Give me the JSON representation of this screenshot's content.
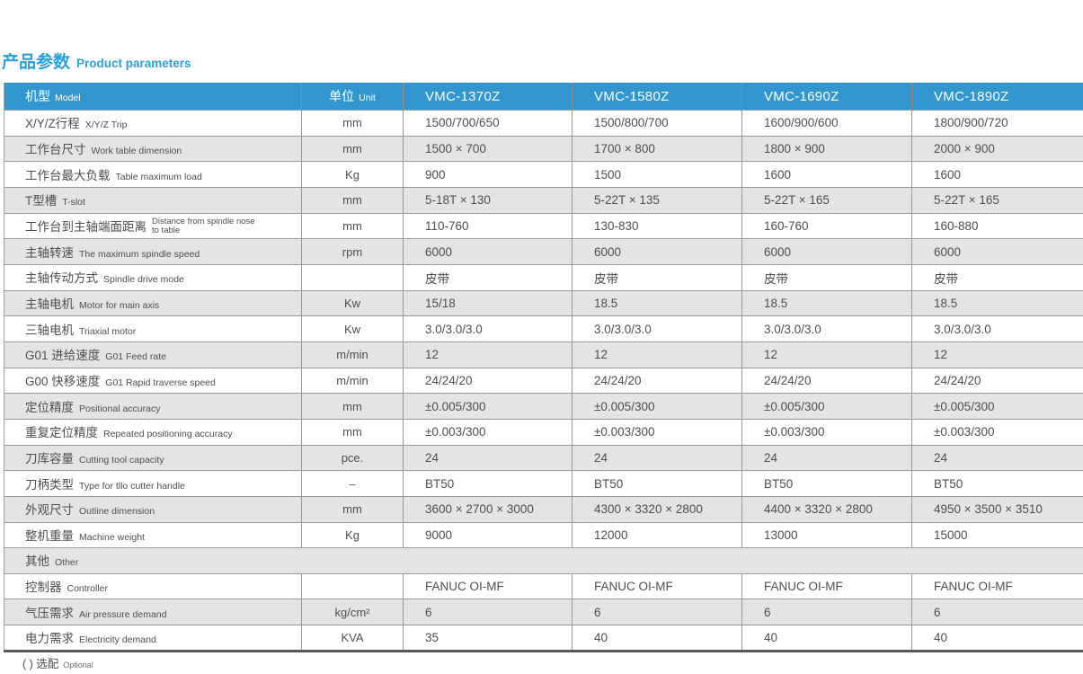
{
  "page": {
    "title_zh": "产品参数",
    "title_en": "Product parameters",
    "footnote_zh": "( ) 选配",
    "footnote_en": "Optional"
  },
  "colors": {
    "accent_blue": "#3297ce",
    "title_blue": "#2ba0db",
    "alt_row_gray": "#e3e4e6",
    "text_gray": "#4d4e50",
    "grid_gray": "#98999b"
  },
  "table": {
    "header": {
      "param_zh": "机型",
      "param_en": "Model",
      "unit_zh": "单位",
      "unit_en": "Unit",
      "models": [
        "VMC-1370Z",
        "VMC-1580Z",
        "VMC-1690Z",
        "VMC-1890Z"
      ]
    },
    "rows": [
      {
        "zh": "X/Y/Z行程",
        "en": "X/Y/Z Trip",
        "unit": "mm",
        "values": [
          "1500/700/650",
          "1500/800/700",
          "1600/900/600",
          "1800/900/720"
        ]
      },
      {
        "zh": "工作台尺寸",
        "en": "Work table dimension",
        "unit": "mm",
        "values": [
          "1500 × 700",
          "1700 × 800",
          "1800 × 900",
          "2000 × 900"
        ]
      },
      {
        "zh": "工作台最大负载",
        "en": "Table maximum load",
        "unit": "Kg",
        "values": [
          "900",
          "1500",
          "1600",
          "1600"
        ]
      },
      {
        "zh": "T型槽",
        "en": "T-slot",
        "unit": "mm",
        "values": [
          "5-18T × 130",
          "5-22T × 135",
          "5-22T × 165",
          "5-22T × 165"
        ]
      },
      {
        "zh": "工作台到主轴端面距离",
        "en": "Distance from spindle nose to table",
        "en_twoline": true,
        "unit": "mm",
        "values": [
          "110-760",
          "130-830",
          "160-760",
          "160-880"
        ]
      },
      {
        "zh": "主轴转速",
        "en": "The maximum spindle speed",
        "unit": "rpm",
        "values": [
          "6000",
          "6000",
          "6000",
          "6000"
        ]
      },
      {
        "zh": "主轴传动方式",
        "en": "Spindle drive mode",
        "unit": "",
        "values": [
          "皮带",
          "皮带",
          "皮带",
          "皮带"
        ]
      },
      {
        "zh": "主轴电机",
        "en": "Motor for main axis",
        "unit": "Kw",
        "values": [
          "15/18",
          "18.5",
          "18.5",
          "18.5"
        ]
      },
      {
        "zh": "三轴电机",
        "en": "Triaxial motor",
        "unit": "Kw",
        "values": [
          "3.0/3.0/3.0",
          "3.0/3.0/3.0",
          "3.0/3.0/3.0",
          "3.0/3.0/3.0"
        ]
      },
      {
        "zh": "G01 进给速度",
        "en": "G01 Feed rate",
        "unit": "m/min",
        "values": [
          "12",
          "12",
          "12",
          "12"
        ]
      },
      {
        "zh": "G00 快移速度",
        "en": "G01 Rapid traverse speed",
        "unit": "m/min",
        "values": [
          "24/24/20",
          "24/24/20",
          "24/24/20",
          "24/24/20"
        ]
      },
      {
        "zh": "定位精度",
        "en": "Positional accuracy",
        "unit": "mm",
        "values": [
          "±0.005/300",
          "±0.005/300",
          "±0.005/300",
          "±0.005/300"
        ]
      },
      {
        "zh": "重复定位精度",
        "en": "Repeated positioning accuracy",
        "unit": "mm",
        "values": [
          "±0.003/300",
          "±0.003/300",
          "±0.003/300",
          "±0.003/300"
        ]
      },
      {
        "zh": "刀库容量",
        "en": "Cutting tool capacity",
        "unit": "pce.",
        "values": [
          "24",
          "24",
          "24",
          "24"
        ]
      },
      {
        "zh": "刀柄类型",
        "en": "Type for tllo cutter handle",
        "unit": "–",
        "values": [
          "BT50",
          "BT50",
          "BT50",
          "BT50"
        ]
      },
      {
        "zh": "外观尺寸",
        "en": "Outline dimension",
        "unit": "mm",
        "values": [
          "3600 × 2700 × 3000",
          "4300 × 3320 × 2800",
          "4400 × 3320 × 2800",
          "4950 × 3500 × 3510"
        ]
      },
      {
        "zh": "整机重量",
        "en": "Machine weight",
        "unit": "Kg",
        "values": [
          "9000",
          "12000",
          "13000",
          "15000"
        ]
      },
      {
        "zh": "其他",
        "en": "Other",
        "section": true
      },
      {
        "zh": "控制器",
        "en": "Controller",
        "unit": "",
        "values": [
          "FANUC OI-MF",
          "FANUC OI-MF",
          "FANUC OI-MF",
          "FANUC OI-MF"
        ]
      },
      {
        "zh": "气压需求",
        "en": "Air pressure demand",
        "unit": "kg/cm²",
        "values": [
          "6",
          "6",
          "6",
          "6"
        ]
      },
      {
        "zh": "电力需求",
        "en": "Electricity demand",
        "unit": "KVA",
        "values": [
          "35",
          "40",
          "40",
          "40"
        ]
      }
    ]
  }
}
